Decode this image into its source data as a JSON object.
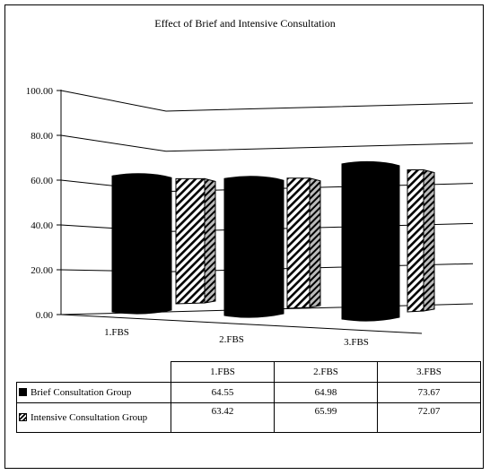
{
  "chart_data": {
    "type": "bar",
    "title": "Effect of Brief and Intensive Consultation",
    "categories": [
      "1.FBS",
      "2.FBS",
      "3.FBS"
    ],
    "y_ticks": [
      "0.00",
      "20.00",
      "40.00",
      "60.00",
      "80.00",
      "100.00"
    ],
    "ylim": [
      0,
      100
    ],
    "grid": true,
    "legend": "bottom-table",
    "series": [
      {
        "name": "Brief Consultation Group",
        "values": [
          64.55,
          64.98,
          73.67
        ],
        "display": [
          "64.55",
          "64.98",
          "73.67"
        ],
        "color": "#000000"
      },
      {
        "name": "Intensive Consultation Group",
        "values": [
          63.42,
          65.99,
          72.07
        ],
        "display": [
          "63.42",
          "65.99",
          "72.07"
        ],
        "color": "hatch"
      }
    ]
  }
}
